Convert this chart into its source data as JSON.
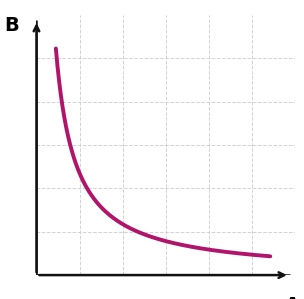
{
  "title": "",
  "xlabel": "A",
  "ylabel": "B",
  "curve_color": "#b0146b",
  "curve_linewidth": 2.8,
  "background_color": "#ffffff",
  "grid_color": "#c8c8c8",
  "grid_linestyle": "--",
  "grid_alpha": 0.8,
  "x_start": 0.08,
  "x_end": 9.5,
  "xlim": [
    0,
    10.5
  ],
  "ylim": [
    0,
    10.5
  ],
  "n_gridlines_x": 5,
  "n_gridlines_y": 5,
  "arrow_color": "#111111",
  "label_fontsize": 14,
  "label_fontweight": "bold"
}
